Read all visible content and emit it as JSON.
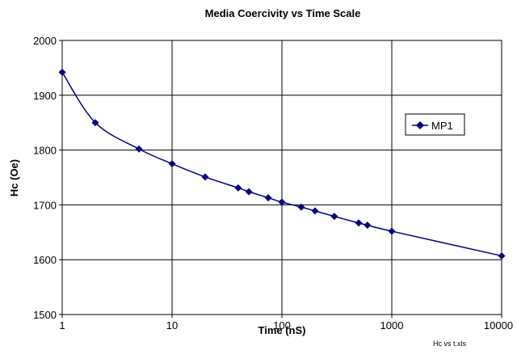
{
  "chart_data": {
    "type": "line",
    "title": "Media Coercivity vs Time Scale",
    "xlabel": "Time (nS)",
    "ylabel": "Hc (Oe)",
    "x_scale": "log",
    "xlim": [
      1,
      10000
    ],
    "ylim": [
      1500,
      2000
    ],
    "x_ticks": [
      1,
      10,
      100,
      1000,
      10000
    ],
    "x_tick_labels": [
      "1",
      "10",
      "100",
      "1000",
      "10000"
    ],
    "y_ticks": [
      1500,
      1600,
      1700,
      1800,
      1900,
      2000
    ],
    "y_tick_labels": [
      "1500",
      "1600",
      "1700",
      "1800",
      "1900",
      "2000"
    ],
    "grid": true,
    "legend_position": "right",
    "marker": "diamond",
    "series": [
      {
        "name": "MP1",
        "color": "#000080",
        "x": [
          1,
          2,
          5,
          10,
          20,
          40,
          50,
          75,
          100,
          150,
          200,
          300,
          500,
          600,
          1000,
          10000
        ],
        "y": [
          1942,
          1850,
          1802,
          1775,
          1751,
          1731,
          1724,
          1713,
          1705,
          1696,
          1689,
          1679,
          1667,
          1663,
          1652,
          1607
        ]
      }
    ],
    "footnote": "Hc vs t.xls"
  }
}
